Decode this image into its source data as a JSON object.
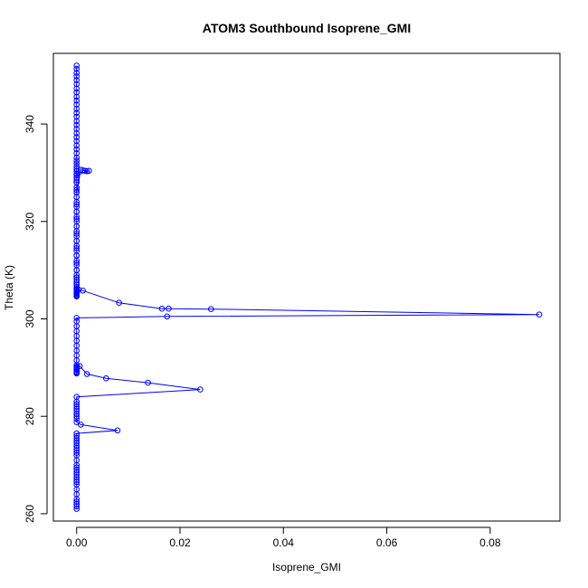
{
  "chart_data": {
    "type": "line",
    "title": "ATOM3 Southbound Isoprene_GMI",
    "xlabel": "Isoprene_GMI",
    "ylabel": "Theta (K)",
    "xlim": [
      -0.0045,
      0.0935
    ],
    "ylim": [
      258.5,
      354.5
    ],
    "xticks": [
      0.0,
      0.02,
      0.04,
      0.06,
      0.08
    ],
    "xtick_labels": [
      "0.00",
      "0.02",
      "0.04",
      "0.06",
      "0.08"
    ],
    "yticks": [
      260,
      280,
      300,
      320,
      340
    ],
    "ytick_labels": [
      "260",
      "280",
      "300",
      "320",
      "340"
    ],
    "marker": "open-circle",
    "grid": false,
    "series": [
      {
        "color": "#0000ff",
        "x": [
          0.0,
          0.0,
          0.0,
          0.0,
          0.0,
          0.0,
          0.0,
          0.0,
          0.0,
          0.0,
          0.0,
          0.0,
          0.0,
          0.0,
          0.0,
          0.0,
          0.0,
          0.0,
          0.0,
          0.0,
          0.0,
          0.0,
          0.0,
          0.0,
          0.0,
          0.0,
          0.0,
          0.0,
          0.0,
          0.0,
          0.0,
          0.0,
          0.0,
          0.0,
          0.0,
          0.0,
          0.0,
          0.0,
          0.0,
          0.0,
          0.0,
          0.0,
          0.0,
          0.0,
          0.0,
          0.0,
          0.0,
          0.0,
          0.0,
          0.0,
          0.0,
          0.0,
          0.0,
          0.0,
          0.0,
          0.0,
          0.0,
          0.0,
          0.0,
          0.0,
          0.0,
          0.0,
          0.0008,
          0.0012,
          0.0016,
          0.002,
          0.0024,
          0.0,
          0.0,
          0.0,
          0.0,
          0.0,
          0.0,
          0.0,
          0.0,
          0.0,
          0.0,
          0.0,
          0.0,
          0.0,
          0.0,
          0.0,
          0.0,
          0.0,
          0.0,
          0.0,
          0.0,
          0.0,
          0.0004,
          0.0012,
          0.0082,
          0.0165,
          0.0178,
          0.026,
          0.0895,
          0.0175,
          0.0,
          0.0,
          0.0,
          0.0,
          0.0,
          0.0,
          0.0,
          0.0,
          0.0,
          0.0,
          0.0,
          0.0,
          0.0,
          0.0,
          0.0,
          0.0,
          0.0,
          0.0,
          0.0,
          0.0006,
          0.002,
          0.0057,
          0.0138,
          0.0239,
          0.0,
          0.0,
          0.0,
          0.0,
          0.0,
          0.0,
          0.0,
          0.0,
          0.0,
          0.0,
          0.0008,
          0.0079,
          0.0,
          0.0,
          0.0,
          0.0,
          0.0,
          0.0,
          0.0,
          0.0,
          0.0,
          0.0,
          0.0,
          0.0,
          0.0,
          0.0,
          0.0,
          0.0,
          0.0,
          0.0,
          0.0,
          0.0,
          0.0,
          0.0,
          0.0,
          0.0,
          0.0,
          0.0,
          0.0
        ],
        "y": [
          352.0,
          351.3,
          350.5,
          349.8,
          349.0,
          348.2,
          347.3,
          346.5,
          345.6,
          344.8,
          344.0,
          343.1,
          342.3,
          341.5,
          340.6,
          339.8,
          339.0,
          338.1,
          337.3,
          336.5,
          335.6,
          334.8,
          334.0,
          333.1,
          332.5,
          331.9,
          331.3,
          330.8,
          330.3,
          329.8,
          329.0,
          328.0,
          327.0,
          326.0,
          325.0,
          324.0,
          323.0,
          322.0,
          321.0,
          320.0,
          319.0,
          318.0,
          317.0,
          316.0,
          315.0,
          314.0,
          313.0,
          312.0,
          311.0,
          310.0,
          309.0,
          308.5,
          308.0,
          307.5,
          307.0,
          306.5,
          306.0,
          305.6,
          305.2,
          304.8,
          328.5,
          326.0,
          330.6,
          330.5,
          330.4,
          330.3,
          330.4,
          329.5,
          328.0,
          326.5,
          325.0,
          323.5,
          322.0,
          320.5,
          319.0,
          317.5,
          316.0,
          314.5,
          313.0,
          311.5,
          310.0,
          308.5,
          307.0,
          306.2,
          305.8,
          305.4,
          305.0,
          304.6,
          306.0,
          305.8,
          303.3,
          302.1,
          302.1,
          302.0,
          300.9,
          300.5,
          300.2,
          299.5,
          298.5,
          297.5,
          296.5,
          295.5,
          294.5,
          293.5,
          292.5,
          291.5,
          290.5,
          290.2,
          290.0,
          289.8,
          289.5,
          289.2,
          289.0,
          288.9,
          288.8,
          290.3,
          288.7,
          287.8,
          286.9,
          285.5,
          284.0,
          283.0,
          282.5,
          282.0,
          281.5,
          281.0,
          280.5,
          280.0,
          279.5,
          278.8,
          278.3,
          277.1,
          276.5,
          276.0,
          275.5,
          275.0,
          274.5,
          274.0,
          273.5,
          273.0,
          272.5,
          272.0,
          271.0,
          270.0,
          269.5,
          269.0,
          268.5,
          268.0,
          267.5,
          267.0,
          266.5,
          266.0,
          265.0,
          264.0,
          263.0,
          262.5,
          262.0,
          261.5,
          261.0
        ]
      }
    ]
  }
}
